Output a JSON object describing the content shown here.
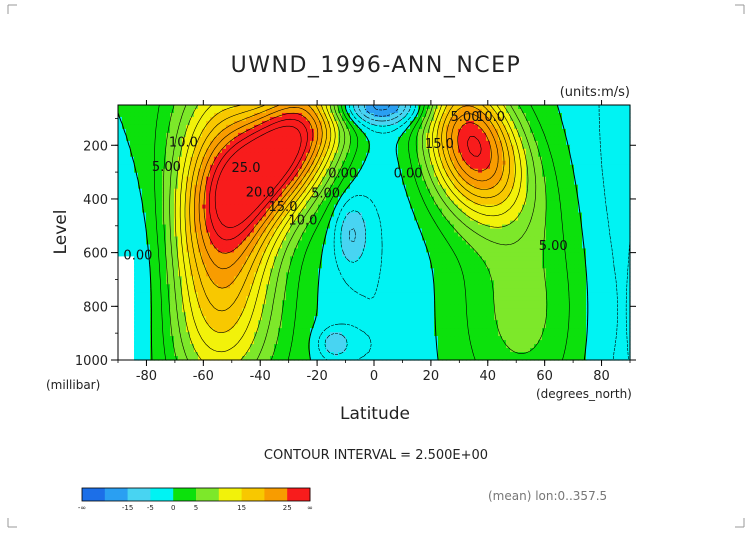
{
  "chart_data": {
    "type": "contour",
    "title": "UWND_1996-ANN_NCEP",
    "units_label": "(units:m/s)",
    "xlabel": "Latitude",
    "x_units": "(degrees_north)",
    "ylabel": "Level",
    "y_units": "(millibar)",
    "xlim": [
      -90,
      90
    ],
    "ylim": [
      1000,
      50
    ],
    "x_ticks": [
      "-80",
      "-60",
      "-40",
      "-20",
      "0",
      "20",
      "40",
      "60",
      "80"
    ],
    "y_ticks": [
      "200",
      "400",
      "600",
      "800",
      "1000"
    ],
    "contour_interval_text": "CONTOUR INTERVAL = 2.500E+00",
    "footer_note": "(mean) lon:0..357.5",
    "jets": [
      {
        "lat": -30,
        "level": 200,
        "max": 30
      },
      {
        "lat": 35,
        "level": 200,
        "max": 28
      },
      {
        "lat": -8,
        "level": 530,
        "max": -6
      },
      {
        "lat": -14,
        "level": 940,
        "max": -6
      }
    ],
    "contour_labels": [
      {
        "text": "10.0",
        "lat": -67,
        "level": 205
      },
      {
        "text": "5.00",
        "lat": -73,
        "level": 295
      },
      {
        "text": "25.0",
        "lat": -45,
        "level": 300
      },
      {
        "text": "20.0",
        "lat": -40,
        "level": 390
      },
      {
        "text": "15.0",
        "lat": -32,
        "level": 445
      },
      {
        "text": "10.0",
        "lat": -25,
        "level": 495
      },
      {
        "text": "5.00",
        "lat": -17,
        "level": 395
      },
      {
        "text": "0.00",
        "lat": -11,
        "level": 320
      },
      {
        "text": "0.00",
        "lat": 12,
        "level": 320
      },
      {
        "text": "5.00",
        "lat": 32,
        "level": 110
      },
      {
        "text": "10.0",
        "lat": 41,
        "level": 110
      },
      {
        "text": "15.0",
        "lat": 23,
        "level": 210
      },
      {
        "text": "5.00",
        "lat": 63,
        "level": 590
      },
      {
        "text": "0.00",
        "lat": -83,
        "level": 625
      }
    ],
    "colorbar": {
      "colors": [
        "#1c6fe8",
        "#2a9ff2",
        "#48d4f2",
        "#00f3f3",
        "#0ce10c",
        "#7de82a",
        "#f2f20a",
        "#f8c800",
        "#f89c00",
        "#f81c1c"
      ],
      "labels": [
        "-∞",
        "-15",
        "-5",
        "0",
        "5",
        "15",
        "25",
        "∞"
      ]
    }
  }
}
